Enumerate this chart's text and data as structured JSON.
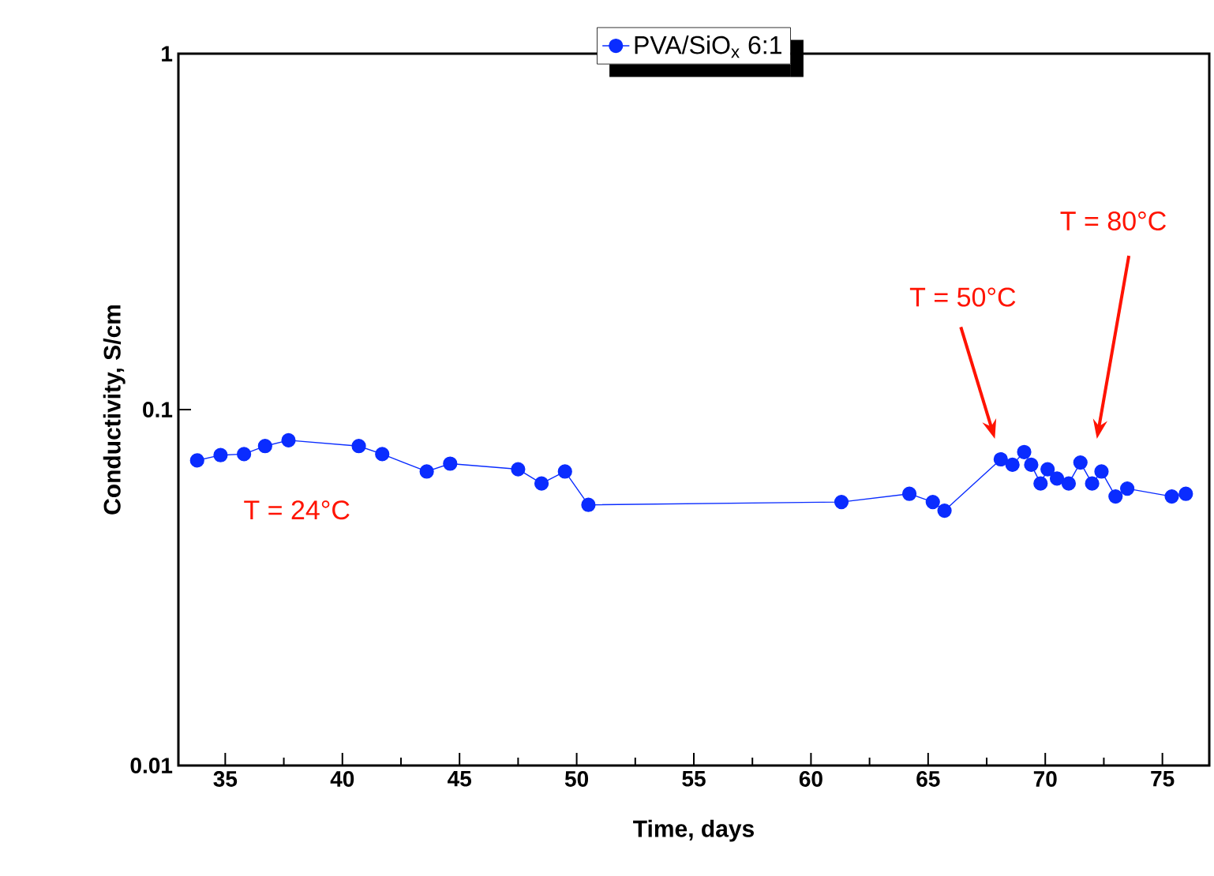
{
  "chart_data": {
    "type": "line",
    "xlabel": "Time, days",
    "ylabel": "Conductivity, S/cm",
    "log": "y",
    "marker": "circle",
    "line_style": "solid",
    "legend": "top",
    "xlim": [
      33,
      77
    ],
    "xticks": [
      35,
      40,
      45,
      50,
      55,
      60,
      65,
      70,
      75
    ],
    "ylim": [
      0.01,
      1
    ],
    "yticks": [
      0.01,
      0.1,
      1
    ],
    "annotations": [
      "T = 24°C",
      "T = 50°C",
      "T = 80°C"
    ],
    "series": [
      {
        "name": "PVA/SiO$_{x}$ 6:1",
        "color": "#0a2cff",
        "x": [
          33.8,
          34.8,
          35.8,
          36.7,
          37.7,
          40.7,
          41.7,
          43.6,
          44.6,
          47.5,
          48.5,
          49.5,
          50.5,
          61.3,
          64.2,
          65.2,
          65.7,
          68.1,
          68.6,
          69.1,
          69.4,
          69.8,
          70.1,
          70.5,
          71.0,
          71.5,
          72.0,
          72.4,
          73.0,
          73.5,
          75.4,
          76.0
        ],
        "values": [
          0.072,
          0.0745,
          0.075,
          0.079,
          0.082,
          0.079,
          0.075,
          0.067,
          0.0705,
          0.068,
          0.062,
          0.067,
          0.054,
          0.055,
          0.058,
          0.055,
          0.052,
          0.0725,
          0.07,
          0.076,
          0.07,
          0.062,
          0.068,
          0.064,
          0.062,
          0.071,
          0.062,
          0.067,
          0.057,
          0.06,
          0.057,
          0.058
        ]
      }
    ]
  }
}
